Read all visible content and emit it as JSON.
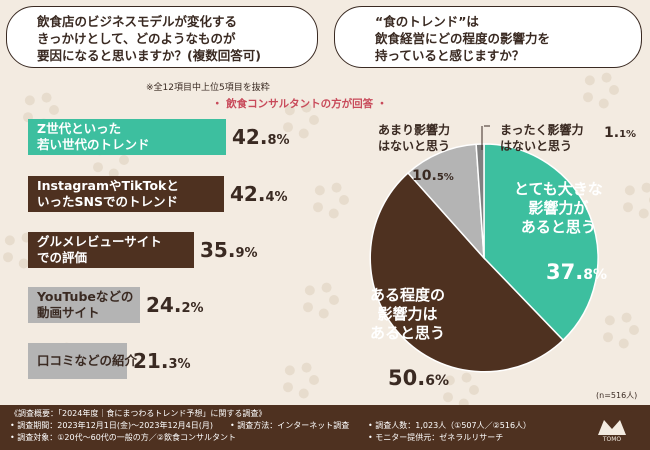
{
  "questions": {
    "left": {
      "lines": [
        "飲食店のビジネスモデルが変化する",
        "きっかけとして、どのようなものが",
        "要因になると思いますか？(複数回答可)"
      ],
      "note": "※全12項目中上位5項目を抜粋"
    },
    "right": {
      "lines": [
        "“食のトレンド”は",
        "飲食経営にどの程度の影響力を",
        "持っていると感じますか？"
      ]
    }
  },
  "subtitle": "・ 飲食コンサルタントの方が回答 ・",
  "bar_chart": {
    "type": "bar",
    "orientation": "horizontal",
    "title": "飲食店のビジネスモデルが変化する要因",
    "categories": [
      [
        "Z世代といった",
        "若い世代のトレンド"
      ],
      [
        "InstagramやTikTokと",
        "いったSNSでのトレンド"
      ],
      [
        "グルメレビューサイト",
        "での評価"
      ],
      [
        "YouTubeなどの",
        "動画サイト"
      ],
      [
        "口コミなどの紹介"
      ]
    ],
    "values": [
      42.8,
      42.4,
      35.9,
      24.2,
      21.3
    ],
    "value_labels": [
      [
        "42.",
        "8",
        "%"
      ],
      [
        "42.",
        "4",
        "%"
      ],
      [
        "35.",
        "9",
        "%"
      ],
      [
        "24.",
        "2",
        "%"
      ],
      [
        "21.",
        "3",
        "%"
      ]
    ],
    "colors": [
      "#3dbf9f",
      "#4e3120",
      "#4e3120",
      "#b4b4b4",
      "#b4b4b4"
    ],
    "label_colors": [
      "#ffffff",
      "#ffffff",
      "#ffffff",
      "#3a2a22",
      "#3a2a22"
    ],
    "xlim": [
      0,
      50
    ]
  },
  "pie_chart": {
    "type": "pie",
    "title": "“食のトレンド”の飲食経営への影響力",
    "slices": [
      {
        "name": [
          "とても大きな",
          "影響力が",
          "あると思う"
        ],
        "value": 37.8,
        "value_text": [
          "37.",
          "8",
          "%"
        ],
        "color": "#3dbf9f"
      },
      {
        "name": [
          "ある程度の",
          "影響力は",
          "あると思う"
        ],
        "value": 50.6,
        "value_text": [
          "50.",
          "6",
          "%"
        ],
        "color": "#4e3120"
      },
      {
        "name": [
          "あまり影響力",
          "はないと思う"
        ],
        "value": 10.5,
        "value_text": [
          "10.",
          "5",
          "%"
        ],
        "color": "#b4b4b4"
      },
      {
        "name": [
          "まったく影響力",
          "はないと思う"
        ],
        "value": 1.1,
        "value_text": [
          "1.",
          "1",
          "%"
        ],
        "color": "#808080"
      }
    ],
    "n_note": "(n=516人)"
  },
  "footer": {
    "title": "《調査概要：「2024年度｜食にまつわるトレンド予想」に関する調査》",
    "period": "• 調査期間：2023年12月1日(金)～2023年12月4日(月)",
    "method": "• 調査方法：インターネット調査",
    "subjects": "• 調査対象：①20代～60代の一般の方／②飲食コンサルタント",
    "count": "• 調査人数：1,023人（①507人／②516人）",
    "provider": "• モニター提供元：ゼネラルリサーチ",
    "logo_text": "TOMO"
  },
  "colors": {
    "accent_green": "#3dbf9f",
    "dark_brown": "#4e3120",
    "gray": "#b4b4b4",
    "background": "#f3ebe1",
    "subtitle_red": "#c84a5a"
  }
}
